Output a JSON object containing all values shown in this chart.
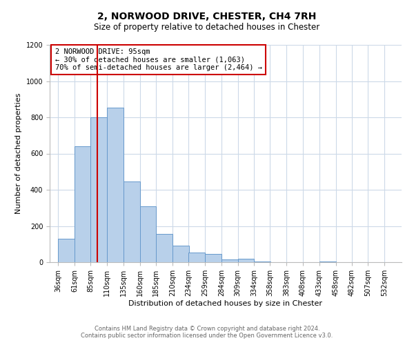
{
  "title": "2, NORWOOD DRIVE, CHESTER, CH4 7RH",
  "subtitle": "Size of property relative to detached houses in Chester",
  "xlabel": "Distribution of detached houses by size in Chester",
  "ylabel": "Number of detached properties",
  "bar_values": [
    130,
    640,
    800,
    855,
    445,
    310,
    155,
    90,
    55,
    45,
    15,
    20,
    5,
    0,
    0,
    0,
    5,
    0
  ],
  "bin_starts": [
    36,
    61,
    85,
    110,
    135,
    160,
    185,
    210,
    234,
    259,
    284,
    309,
    334,
    358,
    383,
    408,
    433,
    458
  ],
  "bin_width": 25,
  "bar_labels": [
    "36sqm",
    "61sqm",
    "85sqm",
    "110sqm",
    "135sqm",
    "160sqm",
    "185sqm",
    "210sqm",
    "234sqm",
    "259sqm",
    "284sqm",
    "309sqm",
    "334sqm",
    "358sqm",
    "383sqm",
    "408sqm",
    "433sqm",
    "458sqm",
    "482sqm",
    "507sqm",
    "532sqm"
  ],
  "xtick_positions": [
    36,
    61,
    85,
    110,
    135,
    160,
    185,
    210,
    234,
    259,
    284,
    309,
    334,
    358,
    383,
    408,
    433,
    458,
    482,
    507,
    532
  ],
  "bar_color": "#b8d0ea",
  "bar_edge_color": "#6699cc",
  "property_line_x": 95,
  "property_line_color": "#cc0000",
  "ylim": [
    0,
    1200
  ],
  "xlim_left": 23,
  "xlim_right": 558,
  "yticks": [
    0,
    200,
    400,
    600,
    800,
    1000,
    1200
  ],
  "annotation_box_text": "2 NORWOOD DRIVE: 95sqm\n← 30% of detached houses are smaller (1,063)\n70% of semi-detached houses are larger (2,464) →",
  "footer_line1": "Contains HM Land Registry data © Crown copyright and database right 2024.",
  "footer_line2": "Contains public sector information licensed under the Open Government Licence v3.0.",
  "background_color": "#ffffff",
  "grid_color": "#ccd9e8",
  "title_fontsize": 10,
  "subtitle_fontsize": 8.5,
  "ylabel_fontsize": 8,
  "xlabel_fontsize": 8,
  "tick_fontsize": 7,
  "footer_fontsize": 6,
  "annotation_fontsize": 7.5
}
